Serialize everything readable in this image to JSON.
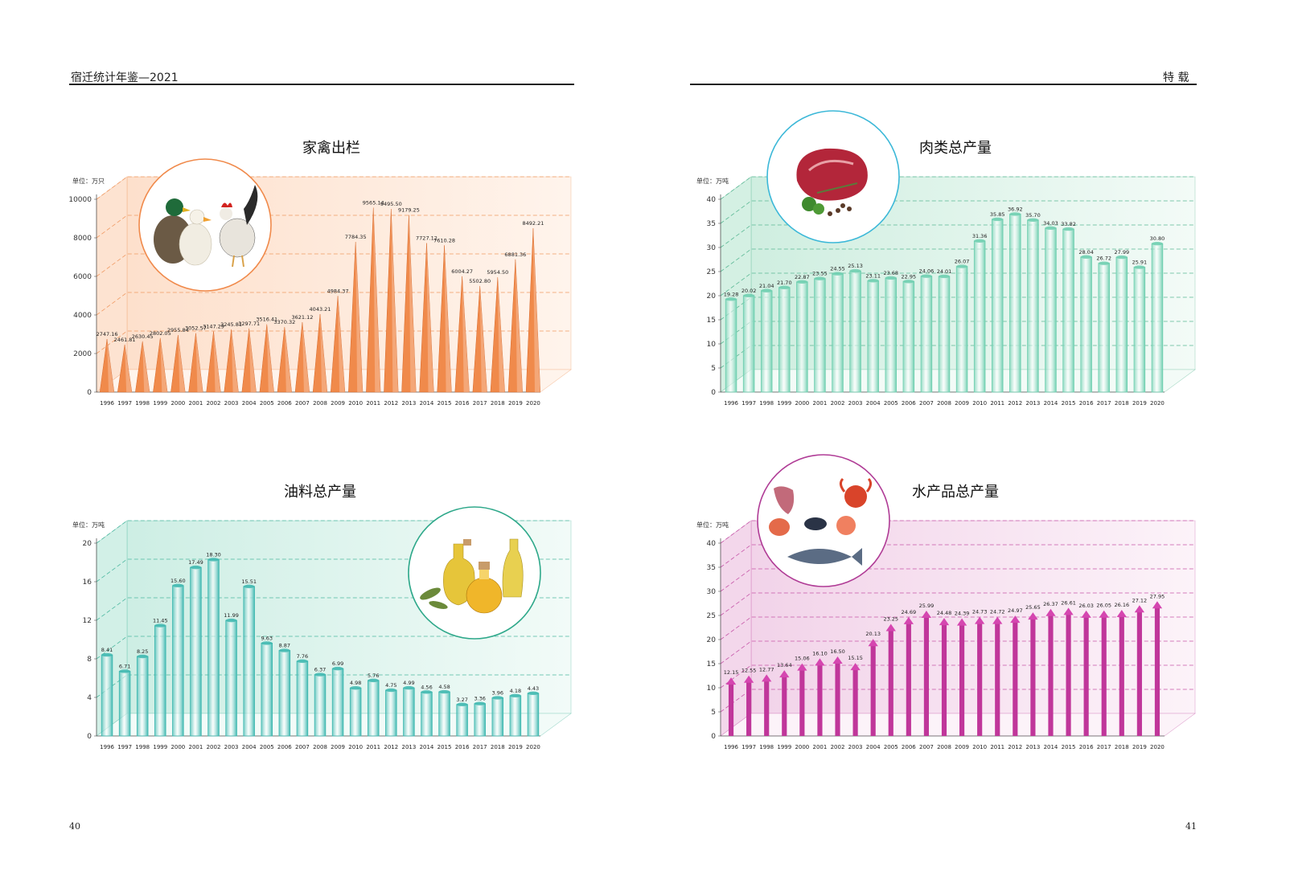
{
  "header": {
    "left_title": "宿迁统计年鉴—2021",
    "right_title": "特  载"
  },
  "page_numbers": {
    "left": "40",
    "right": "41"
  },
  "colors": {
    "poultry": "#f08a4b",
    "meat": "#6fcfb0",
    "oil": "#3fb8b0",
    "aquatic": "#c0369a"
  },
  "chart_data": [
    {
      "id": "poultry",
      "type": "bar",
      "style": "cone",
      "title": "家禽出栏",
      "unit_label": "单位：万只",
      "ylim": [
        0,
        10000
      ],
      "yticks": [
        0,
        2000,
        4000,
        6000,
        8000,
        10000
      ],
      "grid": true,
      "image": "duck-and-rooster-illustration",
      "categories": [
        "1996",
        "1997",
        "1998",
        "1999",
        "2000",
        "2001",
        "2002",
        "2003",
        "2004",
        "2005",
        "2006",
        "2007",
        "2008",
        "2009",
        "2010",
        "2011",
        "2012",
        "2013",
        "2014",
        "2015",
        "2016",
        "2017",
        "2018",
        "2019",
        "2020"
      ],
      "values": [
        2747.16,
        2461.81,
        2630.45,
        2802.05,
        2955.84,
        3052.57,
        3147.29,
        3245.81,
        3297.71,
        3516.41,
        3370.32,
        3621.12,
        4043.21,
        4984.37,
        7784.35,
        9565.14,
        9495.5,
        9179.25,
        7727.12,
        7610.28,
        6004.27,
        5502.8,
        5954.5,
        6881.36,
        8492.21
      ],
      "labels": [
        "2747.16",
        "2461.81",
        "2630.45",
        "2802.05",
        "2955.84",
        "3052.57",
        "3147.29",
        "3245.81",
        "3297.71",
        "3516.41",
        "3370.32",
        "3621.12",
        "4043.21",
        "4984.37",
        "7784.35",
        "9565.14",
        "9495.50",
        "9179.25",
        "7727.12",
        "7610.28",
        "6004.27",
        "5502.80",
        "5954.50",
        "6881.36",
        "8492.21"
      ]
    },
    {
      "id": "meat",
      "type": "bar",
      "style": "column",
      "title": "肉类总产量",
      "unit_label": "单位：万吨",
      "ylim": [
        0,
        40
      ],
      "yticks": [
        0,
        5,
        10,
        15,
        20,
        25,
        30,
        35,
        40
      ],
      "grid": true,
      "image": "raw-meat-illustration",
      "categories": [
        "1996",
        "1997",
        "1998",
        "1999",
        "2000",
        "2001",
        "2002",
        "2003",
        "2004",
        "2005",
        "2006",
        "2007",
        "2008",
        "2009",
        "2010",
        "2011",
        "2012",
        "2013",
        "2014",
        "2015",
        "2016",
        "2017",
        "2018",
        "2019",
        "2020"
      ],
      "values": [
        19.28,
        20.02,
        21.04,
        21.7,
        22.87,
        23.55,
        24.55,
        25.13,
        23.11,
        23.68,
        22.95,
        24.06,
        24.01,
        26.07,
        31.36,
        35.85,
        36.92,
        35.7,
        34.03,
        33.82,
        28.04,
        26.72,
        27.99,
        25.91,
        30.8
      ],
      "labels": [
        "19.28",
        "20.02",
        "21.04",
        "21.70",
        "22.87",
        "23.55",
        "24.55",
        "25.13",
        "23.11",
        "23.68",
        "22.95",
        "24.06",
        "24.01",
        "26.07",
        "31.36",
        "35.85",
        "36.92",
        "35.70",
        "34.03",
        "33.82",
        "28.04",
        "26.72",
        "27.99",
        "25.91",
        "30.80"
      ]
    },
    {
      "id": "oil",
      "type": "bar",
      "style": "column",
      "title": "油料总产量",
      "unit_label": "单位：万吨",
      "ylim": [
        0,
        20
      ],
      "yticks": [
        0,
        4,
        8,
        12,
        16,
        20
      ],
      "grid": true,
      "image": "olive-oil-bottles-illustration",
      "categories": [
        "1996",
        "1997",
        "1998",
        "1999",
        "2000",
        "2001",
        "2002",
        "2003",
        "2004",
        "2005",
        "2006",
        "2007",
        "2008",
        "2009",
        "2010",
        "2011",
        "2012",
        "2013",
        "2014",
        "2015",
        "2016",
        "2017",
        "2018",
        "2019",
        "2020"
      ],
      "values": [
        8.41,
        6.71,
        8.25,
        11.45,
        15.6,
        17.49,
        18.3,
        11.99,
        15.51,
        9.63,
        8.87,
        7.76,
        6.37,
        6.99,
        4.98,
        5.76,
        4.75,
        4.99,
        4.56,
        4.58,
        3.27,
        3.36,
        3.96,
        4.18,
        4.43
      ],
      "labels": [
        "8.41",
        "6.71",
        "8.25",
        "11.45",
        "15.60",
        "17.49",
        "18.30",
        "11.99",
        "15.51",
        "9.63",
        "8.87",
        "7.76",
        "6.37",
        "6.99",
        "4.98",
        "5.76",
        "4.75",
        "4.99",
        "4.56",
        "4.58",
        "3.27",
        "3.36",
        "3.96",
        "4.18",
        "4.43"
      ]
    },
    {
      "id": "aquatic",
      "type": "bar",
      "style": "arrow",
      "title": "水产品总产量",
      "unit_label": "单位：万吨",
      "ylim": [
        0,
        40
      ],
      "yticks": [
        0,
        5,
        10,
        15,
        20,
        25,
        30,
        35,
        40
      ],
      "grid": true,
      "image": "seafood-illustration",
      "categories": [
        "1996",
        "1997",
        "1998",
        "1999",
        "2000",
        "2001",
        "2002",
        "2003",
        "2004",
        "2005",
        "2006",
        "2007",
        "2008",
        "2009",
        "2010",
        "2011",
        "2012",
        "2013",
        "2014",
        "2015",
        "2016",
        "2017",
        "2018",
        "2019",
        "2020"
      ],
      "values": [
        12.15,
        12.55,
        12.77,
        13.64,
        15.06,
        16.1,
        16.5,
        15.15,
        20.13,
        23.25,
        24.69,
        25.99,
        24.48,
        24.39,
        24.73,
        24.72,
        24.97,
        25.65,
        26.37,
        26.61,
        26.03,
        26.05,
        26.16,
        27.12,
        27.95
      ],
      "labels": [
        "12.15",
        "12.55",
        "12.77",
        "13.64",
        "15.06",
        "16.10",
        "16.50",
        "15.15",
        "20.13",
        "23.25",
        "24.69",
        "25.99",
        "24.48",
        "24.39",
        "24.73",
        "24.72",
        "24.97",
        "25.65",
        "26.37",
        "26.61",
        "26.03",
        "26.05",
        "26.16",
        "27.12",
        "27.95"
      ]
    }
  ]
}
